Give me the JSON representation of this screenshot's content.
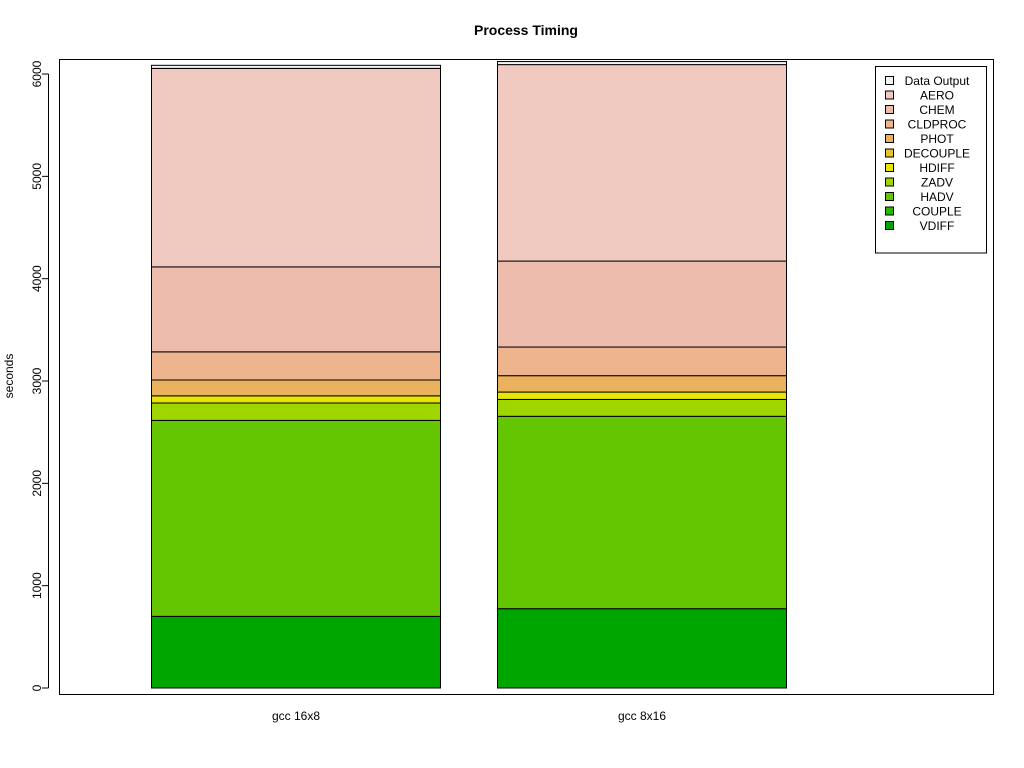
{
  "chart_data": {
    "type": "bar",
    "stacked": true,
    "title": "Process Timing",
    "xlabel": "",
    "ylabel": "seconds",
    "ylim": [
      0,
      6130
    ],
    "yticks": [
      0,
      1000,
      2000,
      3000,
      4000,
      5000,
      6000
    ],
    "ytick_labels": [
      "0",
      "1000",
      "2000",
      "3000",
      "4000",
      "5000",
      "6000"
    ],
    "categories": [
      "gcc 16x8",
      "gcc 8x16"
    ],
    "grid": false,
    "legend_position": "top-right",
    "series": [
      {
        "name": "VDIFF",
        "color": "#00A600",
        "values": [
          700,
          775
        ]
      },
      {
        "name": "COUPLE",
        "color": "#2DB600",
        "values": [
          0,
          0
        ]
      },
      {
        "name": "HADV",
        "color": "#63C600",
        "values": [
          1915,
          1880
        ]
      },
      {
        "name": "ZADV",
        "color": "#A0D600",
        "values": [
          170,
          165
        ]
      },
      {
        "name": "HDIFF",
        "color": "#E6E600",
        "values": [
          70,
          72
        ]
      },
      {
        "name": "DECOUPLE",
        "color": "#E8C32E",
        "values": [
          0,
          0
        ]
      },
      {
        "name": "PHOT",
        "color": "#EBB25E",
        "values": [
          155,
          160
        ]
      },
      {
        "name": "CLDPROC",
        "color": "#EDB48E",
        "values": [
          275,
          280
        ]
      },
      {
        "name": "CHEM",
        "color": "#EEBCAC",
        "values": [
          830,
          840
        ]
      },
      {
        "name": "AERO",
        "color": "#F0C9C0",
        "values": [
          1940,
          1920
        ]
      },
      {
        "name": "Data Output",
        "color": "#F2F2F2",
        "values": [
          30,
          30
        ]
      }
    ]
  }
}
